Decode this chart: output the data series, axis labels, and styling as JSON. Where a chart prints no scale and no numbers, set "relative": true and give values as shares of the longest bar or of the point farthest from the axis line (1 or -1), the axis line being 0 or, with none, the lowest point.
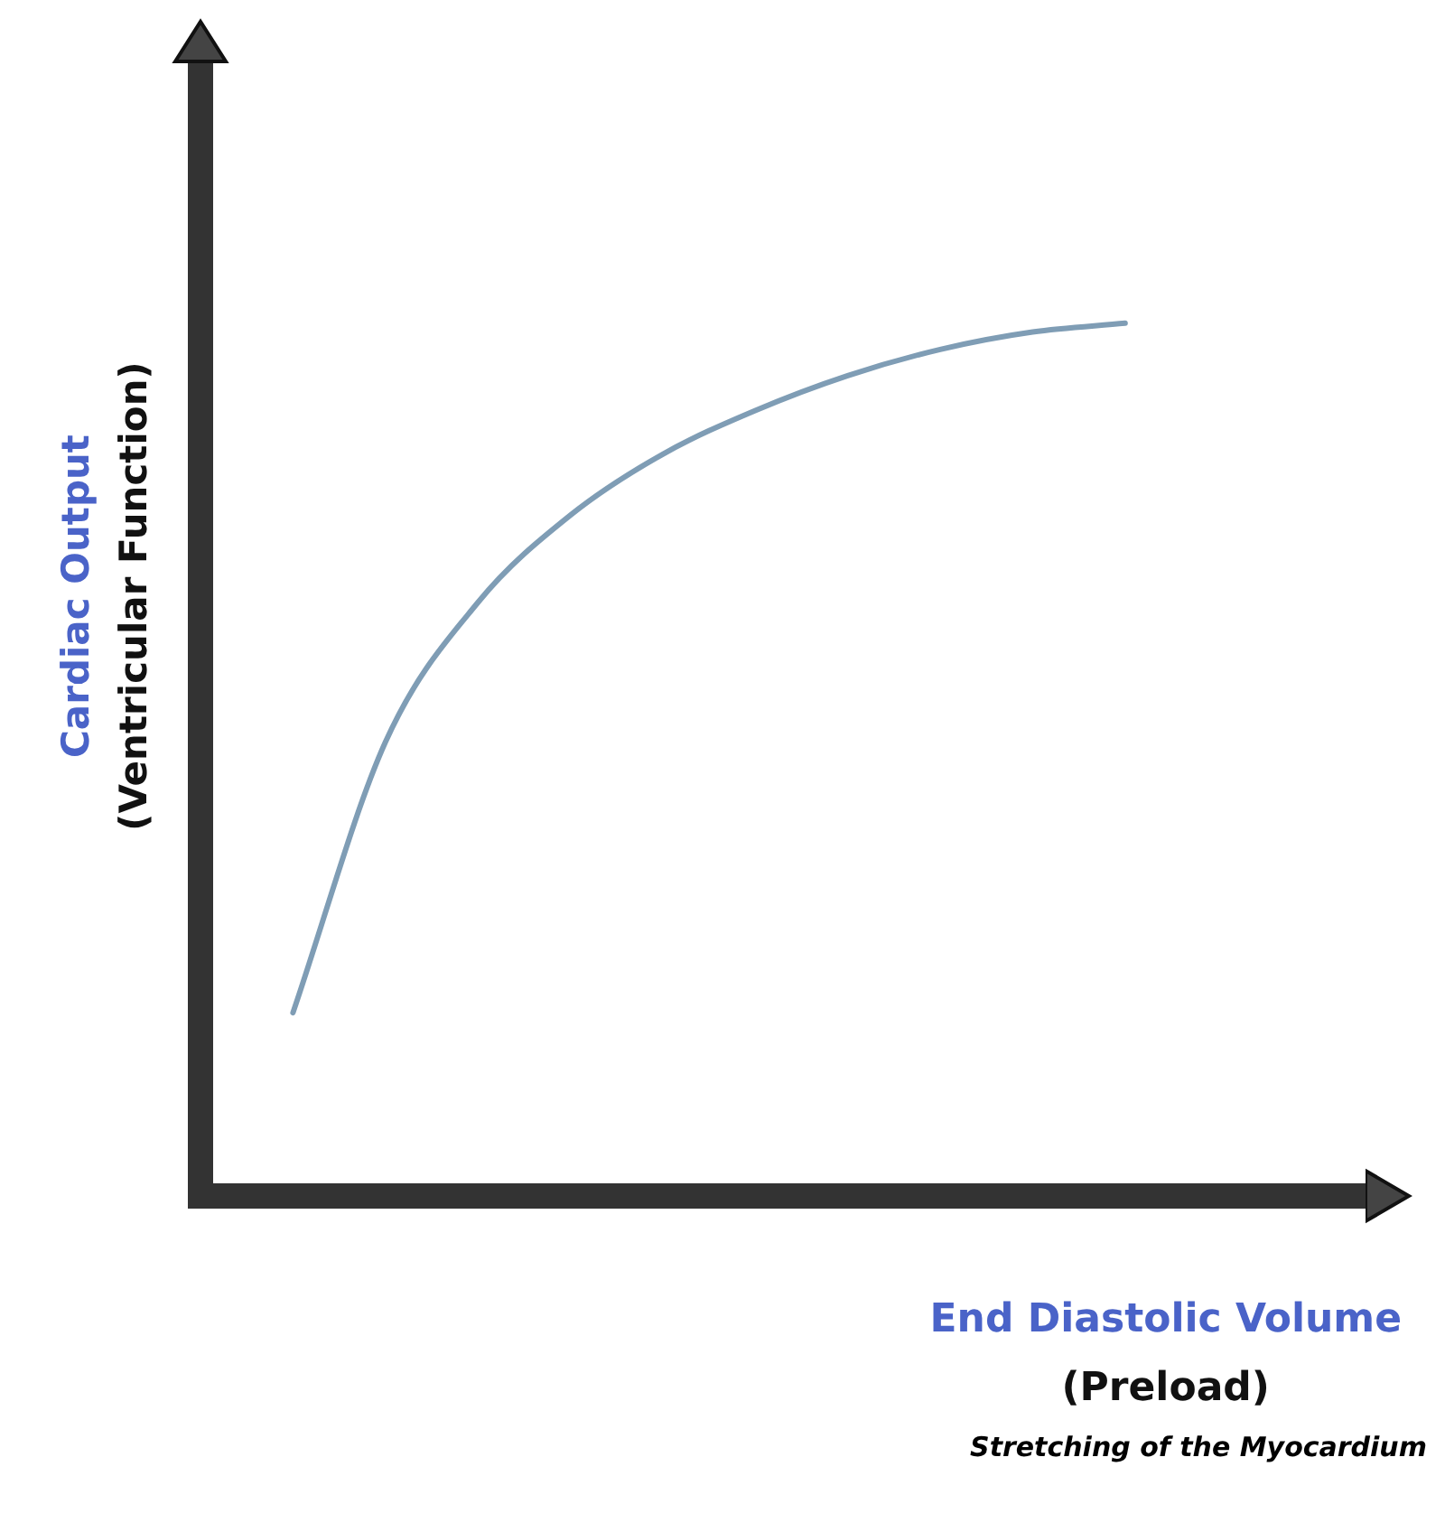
{
  "chart_data": {
    "type": "line",
    "relative": true,
    "xlabel": "End Diastolic Volume\n(Preload)",
    "ylabel": "Cardiac Output\n(Ventricular Function)",
    "annotations": [
      "Stretching of the Myocardium"
    ],
    "categories": [
      null,
      null,
      null,
      null,
      null,
      null,
      null,
      null,
      null,
      null
    ],
    "series": [
      {
        "color": "#7f9db5",
        "values": [
          0.21,
          0.52,
          0.68,
          0.78,
          0.85,
          0.9,
          0.94,
          0.97,
          0.99,
          1.0
        ]
      }
    ],
    "marker": "none",
    "line_style": "solid",
    "legend": false
  }
}
